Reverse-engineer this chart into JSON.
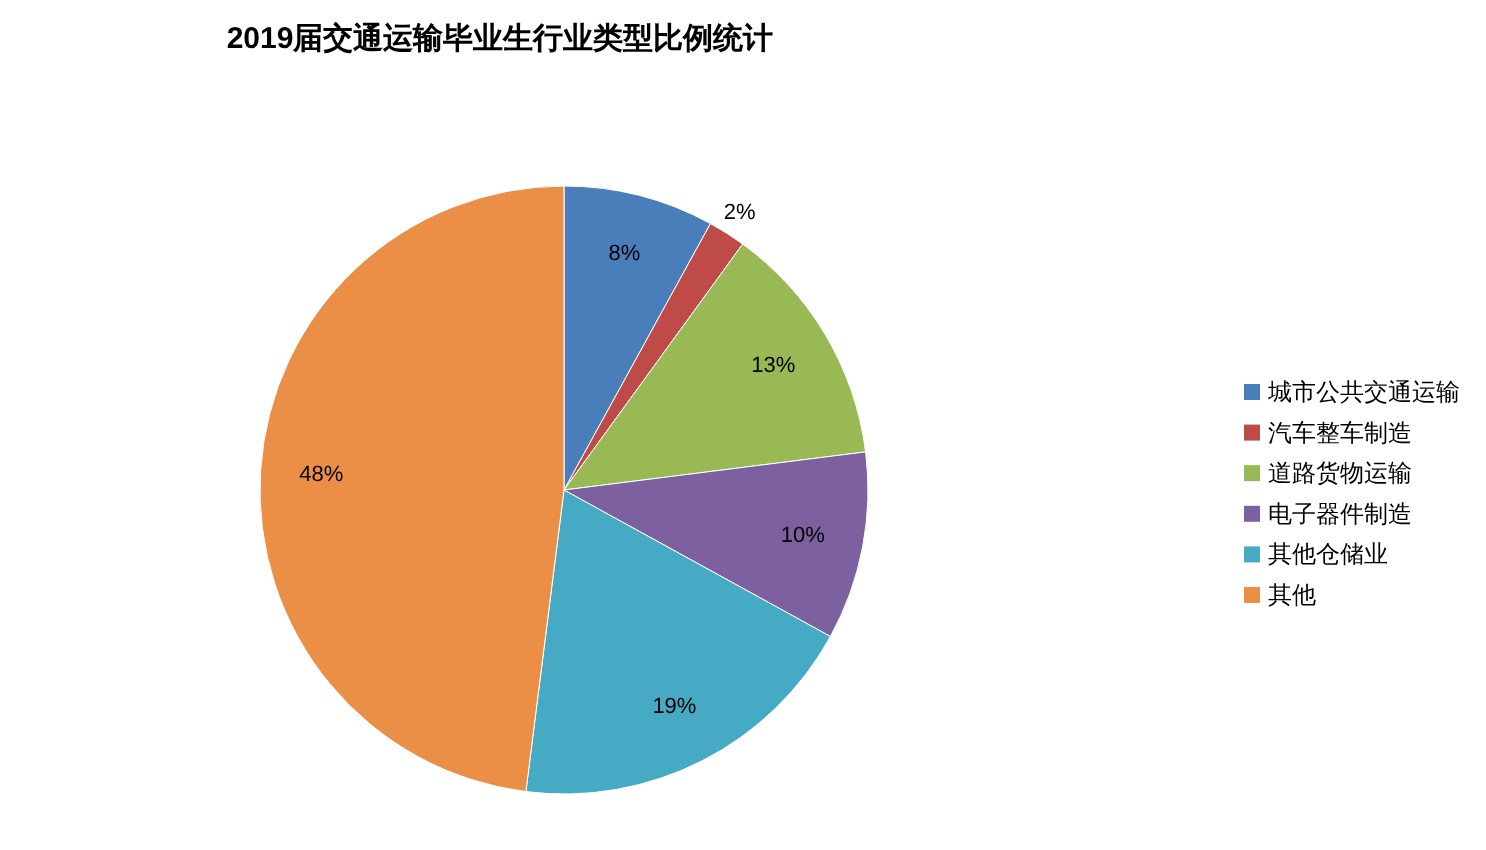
{
  "chart_data": {
    "type": "pie",
    "title": "2019届交通运输毕业生行业类型比例统计",
    "categories": [
      "城市公共交通运输",
      "汽车整车制造",
      "道路货物运输",
      "电子器件制造",
      "其他仓储业",
      "其他"
    ],
    "values": [
      8,
      2,
      13,
      10,
      19,
      48
    ],
    "value_labels": [
      "8%",
      "2%",
      "13%",
      "10%",
      "19%",
      "48%"
    ],
    "colors": [
      "#4a7ebb",
      "#be4b48",
      "#98b954",
      "#7d60a0",
      "#46aac5",
      "#ec8f46"
    ],
    "legend": "right"
  }
}
